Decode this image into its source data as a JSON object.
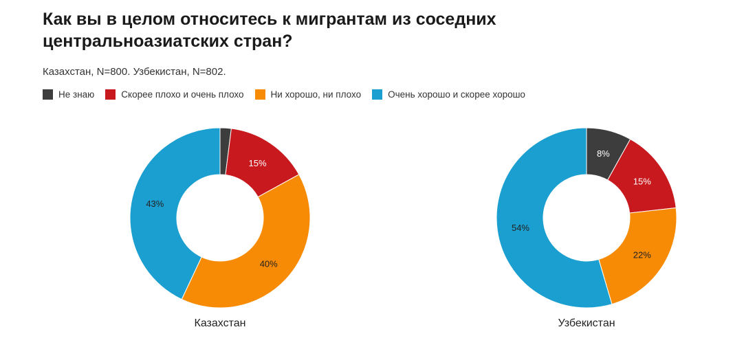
{
  "title": "Как вы в целом относитесь к мигрантам из соседних центральноазиатских стран?",
  "subtitle": "Казахстан, N=800. Узбекистан, N=802.",
  "chart_data": {
    "type": "pie",
    "donut": true,
    "title": "Как вы в целом относитесь к мигрантам из соседних центральноазиатских стран?",
    "subtitle": "Казахстан, N=800. Узбекистан, N=802.",
    "legend": {
      "placement": "top-left",
      "entries": [
        {
          "label": "Не знаю",
          "color": "#3d3d3d"
        },
        {
          "label": "Скорее плохо и очень плохо",
          "color": "#c8191e"
        },
        {
          "label": "Ни хорошо, ни плохо",
          "color": "#f78b05"
        },
        {
          "label": "Очень хорошо и скорее хорошо",
          "color": "#1b9fd0"
        }
      ]
    },
    "charts": [
      {
        "name": "Казахстан",
        "values": [
          2,
          15,
          40,
          43
        ],
        "labels": [
          "",
          "15%",
          "40%",
          "43%"
        ]
      },
      {
        "name": "Узбекистан",
        "values": [
          8,
          15,
          22,
          54
        ],
        "labels": [
          "8%",
          "15%",
          "22%",
          "54%"
        ]
      }
    ]
  }
}
